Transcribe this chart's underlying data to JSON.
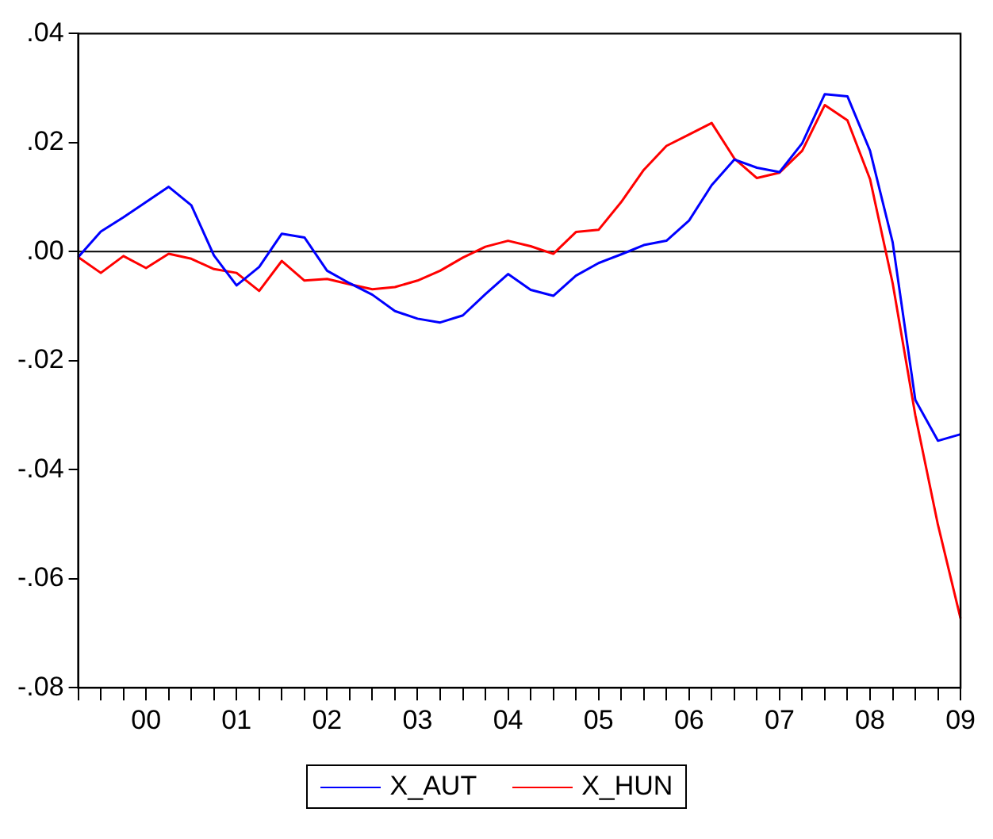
{
  "chart_data": {
    "type": "line",
    "categories": [
      null,
      null,
      null,
      "00",
      null,
      null,
      null,
      "01",
      null,
      null,
      null,
      "02",
      null,
      null,
      null,
      "03",
      null,
      null,
      null,
      "04",
      null,
      null,
      null,
      "05",
      null,
      null,
      null,
      "06",
      null,
      null,
      null,
      "07",
      null,
      null,
      null,
      "08",
      null,
      null,
      null,
      "09"
    ],
    "series": [
      {
        "name": "X_AUT",
        "color": "#0000ff",
        "values": [
          -0.001,
          0.0037,
          0.0063,
          0.0091,
          0.0119,
          0.0085,
          -0.0007,
          -0.0062,
          -0.0028,
          0.0033,
          0.0026,
          -0.0035,
          -0.0058,
          -0.0079,
          -0.0109,
          -0.0123,
          -0.013,
          -0.0117,
          -0.0078,
          -0.0041,
          -0.007,
          -0.0081,
          -0.0044,
          -0.0021,
          -0.0005,
          0.0012,
          0.002,
          0.0057,
          0.0122,
          0.0169,
          0.0154,
          0.0146,
          0.0199,
          0.0289,
          0.0285,
          0.0185,
          0.0017,
          -0.0272,
          -0.0347,
          -0.0335
        ]
      },
      {
        "name": "X_HUN",
        "color": "#ff0000",
        "values": [
          -0.001,
          -0.0039,
          -0.0008,
          -0.003,
          -0.0004,
          -0.0013,
          -0.0032,
          -0.0039,
          -0.0072,
          -0.0017,
          -0.0053,
          -0.005,
          -0.006,
          -0.0069,
          -0.0065,
          -0.0053,
          -0.0035,
          -0.0011,
          0.0009,
          0.002,
          0.001,
          -0.0004,
          0.0036,
          0.004,
          0.0091,
          0.015,
          0.0194,
          0.0215,
          0.0236,
          0.0171,
          0.0135,
          0.0145,
          0.0185,
          0.0269,
          0.0241,
          0.0133,
          -0.0058,
          -0.03,
          -0.0501,
          -0.0673
        ]
      }
    ],
    "ylim": [
      -0.08,
      0.04
    ],
    "yticks": [
      {
        "value": -0.08,
        "label": "-.08"
      },
      {
        "value": -0.06,
        "label": "-.06"
      },
      {
        "value": -0.04,
        "label": "-.04"
      },
      {
        "value": -0.02,
        "label": "-.02"
      },
      {
        "value": 0,
        "label": ".00"
      },
      {
        "value": 0.02,
        "label": ".02"
      },
      {
        "value": 0.04,
        "label": ".04"
      }
    ],
    "ref_lines": [
      {
        "axis": "y",
        "value": 0,
        "color": "#000000"
      }
    ],
    "grid": false,
    "legend": "bottom",
    "marker": "none",
    "line_style": "solid"
  }
}
